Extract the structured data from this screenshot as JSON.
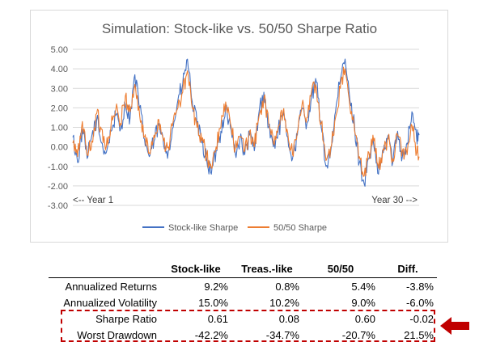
{
  "colors": {
    "stock": "#4472c4",
    "fifty": "#ed7d31",
    "highlight": "#c00000",
    "grid": "#d9d9d9"
  },
  "chart_data": {
    "type": "line",
    "title": "Simulation: Stock-like vs. 50/50 Sharpe Ratio",
    "ylim": [
      -3.0,
      5.0
    ],
    "y_ticks": [
      "5.00",
      "4.00",
      "3.00",
      "2.00",
      "1.00",
      "0.00",
      "-1.00",
      "-2.00",
      "-3.00"
    ],
    "grid": true,
    "legend_position": "bottom",
    "annotations": {
      "left": "<-- Year 1",
      "right": "Year 30 -->"
    },
    "x_range_years": [
      1,
      30
    ],
    "series": [
      {
        "name": "Stock-like Sharpe",
        "color": "#4472c4",
        "x": [
          1.0,
          1.4,
          1.8,
          2.2,
          2.6,
          3.0,
          3.4,
          3.8,
          4.2,
          4.6,
          5.0,
          5.4,
          5.8,
          6.2,
          6.6,
          7.0,
          7.4,
          7.8,
          8.2,
          8.6,
          9.0,
          9.4,
          9.8,
          10.2,
          10.6,
          11.0,
          11.4,
          11.8,
          12.2,
          12.6,
          13.0,
          13.4,
          13.8,
          14.2,
          14.6,
          15.0,
          15.4,
          15.8,
          16.2,
          16.6,
          17.0,
          17.4,
          17.8,
          18.2,
          18.6,
          19.0,
          19.4,
          19.8,
          20.2,
          20.6,
          21.0,
          21.4,
          21.8,
          22.2,
          22.6,
          23.0,
          23.4,
          23.8,
          24.2,
          24.6,
          25.0,
          25.4,
          25.8,
          26.2,
          26.6,
          27.0,
          27.4,
          27.8,
          28.2,
          28.6,
          29.0,
          29.4,
          29.8,
          30.0
        ],
        "y": [
          0.5,
          -0.8,
          0.9,
          -0.6,
          0.6,
          1.4,
          0.2,
          -0.3,
          0.8,
          1.6,
          0.9,
          2.2,
          1.5,
          3.7,
          2.0,
          0.4,
          -0.5,
          0.3,
          1.1,
          0.1,
          -0.2,
          1.0,
          2.4,
          3.2,
          4.5,
          2.3,
          1.2,
          0.2,
          -0.6,
          -1.4,
          -0.2,
          0.8,
          2.0,
          1.0,
          -0.3,
          0.4,
          -0.4,
          0.6,
          -0.2,
          1.8,
          2.8,
          1.0,
          0.0,
          0.8,
          1.6,
          0.5,
          -0.6,
          0.6,
          2.0,
          1.2,
          2.6,
          3.3,
          1.0,
          -1.0,
          -0.2,
          1.8,
          3.4,
          4.5,
          2.4,
          1.0,
          -0.8,
          -1.9,
          -0.6,
          0.1,
          -1.4,
          -0.3,
          0.6,
          -0.8,
          0.8,
          -0.5,
          0.2,
          1.8,
          0.4,
          0.6
        ]
      },
      {
        "name": "50/50 Sharpe",
        "color": "#ed7d31",
        "x": [
          1.0,
          1.4,
          1.8,
          2.2,
          2.6,
          3.0,
          3.4,
          3.8,
          4.2,
          4.6,
          5.0,
          5.4,
          5.8,
          6.2,
          6.6,
          7.0,
          7.4,
          7.8,
          8.2,
          8.6,
          9.0,
          9.4,
          9.8,
          10.2,
          10.6,
          11.0,
          11.4,
          11.8,
          12.2,
          12.6,
          13.0,
          13.4,
          13.8,
          14.2,
          14.6,
          15.0,
          15.4,
          15.8,
          16.2,
          16.6,
          17.0,
          17.4,
          17.8,
          18.2,
          18.6,
          19.0,
          19.4,
          19.8,
          20.2,
          20.6,
          21.0,
          21.4,
          21.8,
          22.2,
          22.6,
          23.0,
          23.4,
          23.8,
          24.2,
          24.6,
          25.0,
          25.4,
          25.8,
          26.2,
          26.6,
          27.0,
          27.4,
          27.8,
          28.2,
          28.6,
          29.0,
          29.4,
          29.8,
          30.0
        ],
        "y": [
          0.2,
          -0.5,
          1.3,
          -0.4,
          0.3,
          1.7,
          0.9,
          0.0,
          1.1,
          1.9,
          1.2,
          2.6,
          1.8,
          3.2,
          1.6,
          0.5,
          -0.3,
          0.6,
          1.4,
          0.3,
          0.0,
          1.3,
          2.0,
          2.8,
          3.9,
          2.0,
          1.0,
          0.3,
          -0.4,
          -1.1,
          0.0,
          1.0,
          2.3,
          1.2,
          -0.1,
          0.5,
          -0.2,
          0.8,
          0.0,
          1.6,
          2.5,
          1.2,
          0.2,
          1.0,
          1.8,
          0.7,
          -0.4,
          0.8,
          2.2,
          1.5,
          2.9,
          3.0,
          1.2,
          -0.7,
          0.0,
          1.5,
          3.0,
          4.0,
          2.1,
          0.8,
          -0.5,
          -1.5,
          -0.3,
          0.3,
          -1.1,
          -0.1,
          0.4,
          -0.6,
          0.6,
          -0.2,
          -0.4,
          1.1,
          -0.3,
          -0.5
        ]
      }
    ]
  },
  "table": {
    "headers": [
      "",
      "Stock-like",
      "Treas.-like",
      "50/50",
      "Diff."
    ],
    "rows": [
      {
        "label": "Annualized Returns",
        "values": [
          "9.2%",
          "0.8%",
          "5.4%",
          "-3.8%"
        ]
      },
      {
        "label": "Annualized Volatility",
        "values": [
          "15.0%",
          "10.2%",
          "9.0%",
          "-6.0%"
        ]
      },
      {
        "label": "Sharpe Ratio",
        "values": [
          "0.61",
          "0.08",
          "0.60",
          "-0.02"
        ]
      },
      {
        "label": "Worst Drawdown",
        "values": [
          "-42.2%",
          "-34.7%",
          "-20.7%",
          "21.5%"
        ]
      }
    ]
  },
  "callout": {
    "icon": "arrow-left-icon"
  }
}
